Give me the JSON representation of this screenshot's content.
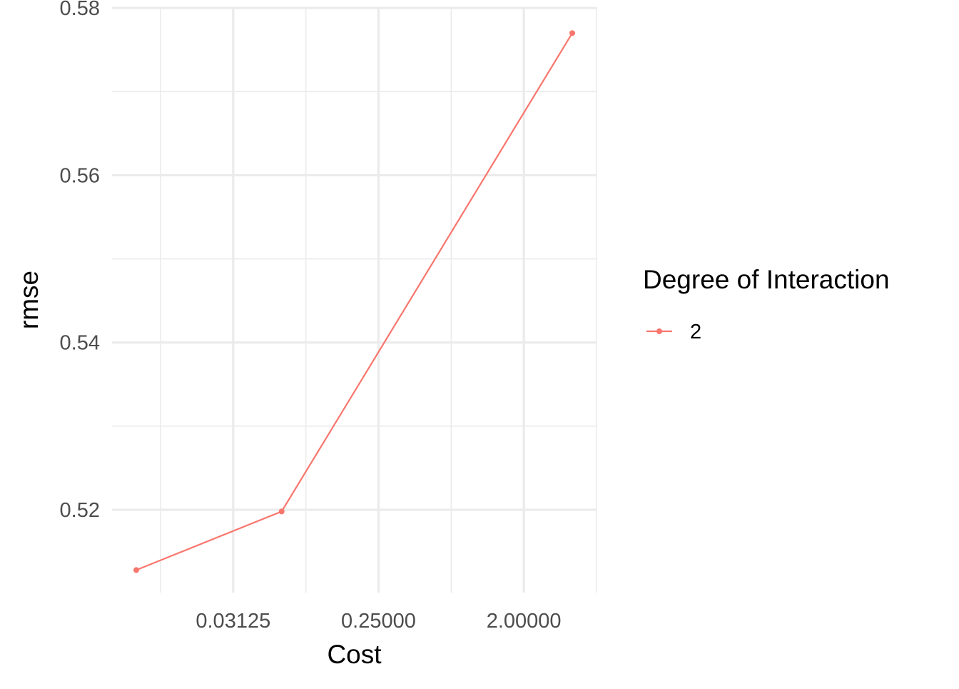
{
  "chart_data": {
    "type": "line",
    "xlabel": "Cost",
    "ylabel": "rmse",
    "x_scale": "log2",
    "xlim": [
      0.00552,
      5.66
    ],
    "ylim": [
      0.5101,
      0.5801
    ],
    "x_ticks": [
      0.03125,
      0.25,
      2.0
    ],
    "x_tick_labels": [
      "0.03125",
      "0.25000",
      "2.00000"
    ],
    "x_minor_ticks": [
      0.011049,
      0.088388,
      0.707107,
      5.656854
    ],
    "y_ticks": [
      0.52,
      0.54,
      0.56,
      0.58
    ],
    "y_tick_labels": [
      "0.52",
      "0.54",
      "0.56",
      "0.58"
    ],
    "y_minor_ticks": [
      0.53,
      0.55,
      0.57
    ],
    "grid": true,
    "legend": {
      "title": "Degree of Interaction",
      "placement": "right"
    },
    "series": [
      {
        "name": "2",
        "color": "#f8766d",
        "x": [
          0.0078125,
          0.0625,
          4.0
        ],
        "y": [
          0.5128,
          0.5198,
          0.577
        ]
      }
    ]
  }
}
